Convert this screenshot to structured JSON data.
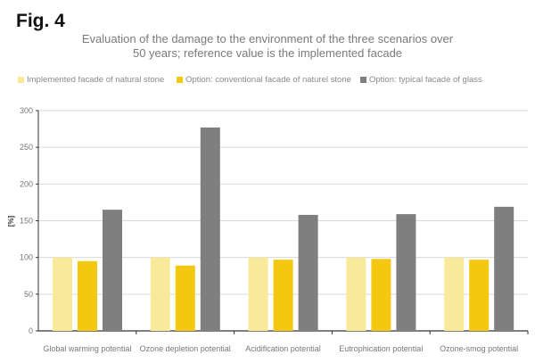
{
  "figure_label": "Fig. 4",
  "chart_data": {
    "type": "bar",
    "title": "Evaluation of the damage to the environment of the three scenarios over 50 years; reference value is the implemented facade",
    "title_lines": [
      "Evaluation of the damage to the environment of the three scenarios over",
      "50 years; reference value is the implemented facade"
    ],
    "xlabel": "",
    "ylabel": "[%]",
    "ylim": [
      0,
      300
    ],
    "yticks": [
      0,
      50,
      100,
      150,
      200,
      250,
      300
    ],
    "grid": true,
    "legend_position": "top",
    "categories": [
      "Global warming potential",
      "Ozone depletion potential",
      "Acidification potential",
      "Eutrophication potential",
      "Ozone-smog potential"
    ],
    "series": [
      {
        "name": "Implemented facade of natural stone",
        "color": "#f9e99a",
        "values": [
          100,
          100,
          100,
          100,
          100
        ]
      },
      {
        "name": "Option: conventional facade of naturel stone",
        "color": "#f2c811",
        "values": [
          95,
          89,
          97,
          98,
          97
        ]
      },
      {
        "name": "Option: typical facade of glass",
        "color": "#7f7f7f",
        "values": [
          165,
          277,
          158,
          159,
          169
        ]
      }
    ]
  }
}
